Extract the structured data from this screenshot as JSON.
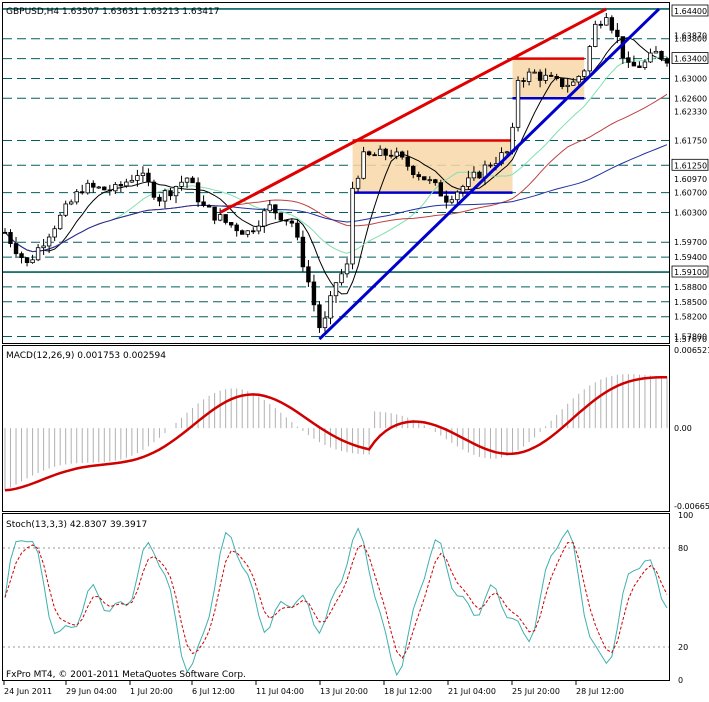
{
  "colors": {
    "background": "#ffffff",
    "frame": "#000000",
    "candle": "#000000",
    "red_trendline": "#e00000",
    "blue_trendline": "#0000cc",
    "level_line": "#006060",
    "box_fill": "#f8d8a8",
    "ma_black": "#000000",
    "ma_green": "#80e0b0",
    "ma_red": "#c04040",
    "ma_blue": "#2030a0",
    "macd_signal": "#d00000",
    "macd_hist": "#b0b0b0",
    "stoch_main": "#40b0b0",
    "stoch_signal": "#d00000"
  },
  "main_panel": {
    "header": "GBPUSD,H4  1.63507 1.63631 1.63213 1.63417",
    "price_labels": [
      "1.64400",
      "1.63870",
      "1.63800",
      "1.63400",
      "1.63000",
      "1.62600",
      "1.62330",
      "1.61750",
      "1.61250",
      "1.60970",
      "1.60700",
      "1.60300",
      "1.59700",
      "1.59400",
      "1.59100",
      "1.58800",
      "1.58500",
      "1.58200",
      "1.57800",
      "1.57670"
    ],
    "highlighted_labels": [
      "1.64400",
      "1.63400",
      "1.61250",
      "1.59100"
    ],
    "copyright": "FxPro MT4, © 2001-2011 MetaQuotes Software Corp."
  },
  "macd_panel": {
    "header": "MACD(12,26,9) 0.001753 0.002594",
    "scale_labels": [
      "0.006521",
      "0.00",
      "-0.006659"
    ]
  },
  "stoch_panel": {
    "header": "Stoch(13,3,3) 42.8307 39.3917",
    "scale_labels": [
      "100",
      "80",
      "20",
      "0"
    ]
  },
  "time_labels": [
    "24 Jun 2011",
    "29 Jun 04:00",
    "1 Jul 20:00",
    "6 Jul 12:00",
    "11 Jul 04:00",
    "13 Jul 20:00",
    "18 Jul 12:00",
    "21 Jul 04:00",
    "25 Jul 20:00",
    "28 Jul 12:00"
  ],
  "chart_data": {
    "type": "candlestick",
    "symbol": "GBPUSD",
    "timeframe": "H4",
    "ylim": [
      1.5767,
      1.6452
    ],
    "x_range": [
      0,
      120
    ],
    "horizontal_levels": [
      1.644,
      1.638,
      1.634,
      1.63,
      1.626,
      1.6175,
      1.6125,
      1.607,
      1.603,
      1.597,
      1.594,
      1.591,
      1.588,
      1.585,
      1.582,
      1.578
    ],
    "red_trendline": [
      [
        39,
        1.603
      ],
      [
        109,
        1.644
      ]
    ],
    "blue_trendline": [
      [
        57,
        1.5775
      ],
      [
        131,
        1.644
      ]
    ],
    "consolidation_box_1": {
      "x": [
        63,
        92
      ],
      "y": [
        1.607,
        1.6175
      ]
    },
    "consolidation_box_2": {
      "x": [
        92,
        105
      ],
      "y": [
        1.626,
        1.634
      ]
    },
    "indicators": {
      "macd": {
        "params": "12,26,9",
        "main": 0.001753,
        "signal": 0.002594,
        "ylim": [
          -0.006659,
          0.006521
        ]
      },
      "stochastic": {
        "params": "13,3,3",
        "main": 42.8307,
        "signal": 39.3917,
        "ylim": [
          0,
          100
        ],
        "levels": [
          20,
          80
        ]
      }
    }
  }
}
